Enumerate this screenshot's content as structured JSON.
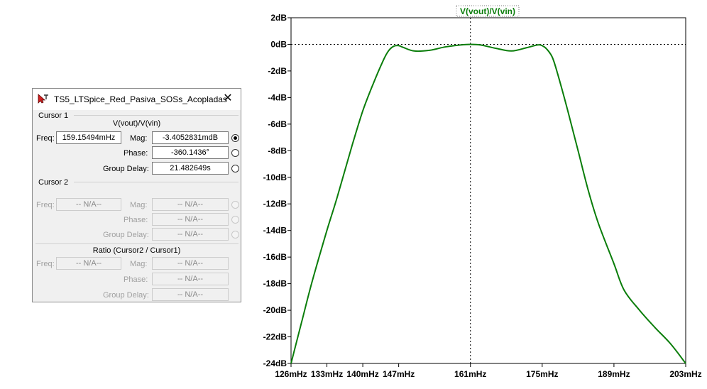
{
  "plot": {
    "trace_title": "V(vout)/V(vin)",
    "trace_color": "#0a7d0a",
    "y_ticks": [
      "2dB",
      "0dB",
      "-2dB",
      "-4dB",
      "-6dB",
      "-8dB",
      "-10dB",
      "-12dB",
      "-14dB",
      "-16dB",
      "-18dB",
      "-20dB",
      "-22dB",
      "-24dB"
    ],
    "x_ticks": [
      "126mHz",
      "133mHz",
      "140mHz",
      "147mHz",
      "161mHz",
      "175mHz",
      "189mHz",
      "203mHz"
    ]
  },
  "chart_data": {
    "type": "line",
    "title": "V(vout)/V(vin)",
    "xlabel": "",
    "ylabel": "",
    "x_unit": "mHz",
    "y_unit": "dB",
    "xlim": [
      126,
      203
    ],
    "ylim": [
      -24,
      2
    ],
    "grid": false,
    "cursor": {
      "x": 161,
      "y": 0
    },
    "series": [
      {
        "name": "V(vout)/V(vin)",
        "x": [
          126,
          128,
          130,
          133,
          135,
          138,
          140,
          142,
          144,
          145,
          146,
          147,
          148,
          150,
          153,
          156,
          159,
          161,
          163,
          166,
          169,
          172,
          174,
          175,
          176,
          177,
          178,
          180,
          182,
          184,
          186,
          189,
          191,
          194,
          197,
          200,
          203
        ],
        "y": [
          -24,
          -21,
          -18,
          -14,
          -11.5,
          -7.5,
          -5,
          -3,
          -1.2,
          -0.5,
          -0.15,
          -0.1,
          -0.25,
          -0.5,
          -0.45,
          -0.2,
          -0.05,
          0,
          -0.05,
          -0.3,
          -0.5,
          -0.25,
          -0.05,
          -0.1,
          -0.4,
          -1.0,
          -2.2,
          -5,
          -8,
          -11,
          -13.5,
          -16.5,
          -18.5,
          -20,
          -21.3,
          -22.5,
          -24
        ]
      }
    ]
  },
  "dialog": {
    "title": "TS5_LTSpice_Red_Pasiva_SOSs_Acopladas",
    "cursor1": {
      "heading": "Cursor 1",
      "trace": "V(vout)/V(vin)",
      "freq_label": "Freq:",
      "freq_value": "159.15494mHz",
      "mag_label": "Mag:",
      "mag_value": "-3.4052831mdB",
      "phase_label": "Phase:",
      "phase_value": "-360.1436°",
      "gd_label": "Group Delay:",
      "gd_value": "21.482649s"
    },
    "cursor2": {
      "heading": "Cursor 2",
      "freq_label": "Freq:",
      "freq_value": "-- N/A--",
      "mag_label": "Mag:",
      "mag_value": "-- N/A--",
      "phase_label": "Phase:",
      "phase_value": "-- N/A--",
      "gd_label": "Group Delay:",
      "gd_value": "-- N/A--"
    },
    "ratio": {
      "heading": "Ratio (Cursor2 / Cursor1)",
      "freq_label": "Freq:",
      "freq_value": "-- N/A--",
      "mag_label": "Mag:",
      "mag_value": "-- N/A--",
      "phase_label": "Phase:",
      "phase_value": "-- N/A--",
      "gd_label": "Group Delay:",
      "gd_value": "-- N/A--"
    }
  }
}
